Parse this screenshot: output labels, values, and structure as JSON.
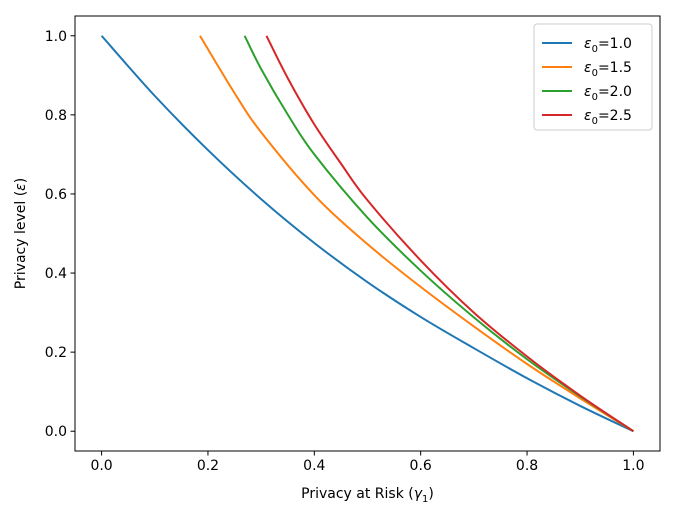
{
  "chart_data": {
    "type": "line",
    "xlabel": "Privacy at Risk (",
    "xlabel_symbol": "γ",
    "xlabel_subscript": "1",
    "xlabel_suffix": ")",
    "ylabel": "Privacy level (",
    "ylabel_symbol": "ε",
    "ylabel_suffix": ")",
    "xlim": [
      -0.05,
      1.05
    ],
    "ylim": [
      -0.05,
      1.05
    ],
    "xticks": [
      0.0,
      0.2,
      0.4,
      0.6,
      0.8,
      1.0
    ],
    "yticks": [
      0.0,
      0.2,
      0.4,
      0.6,
      0.8,
      1.0
    ],
    "xtick_labels": [
      "0.0",
      "0.2",
      "0.4",
      "0.6",
      "0.8",
      "1.0"
    ],
    "ytick_labels": [
      "0.0",
      "0.2",
      "0.4",
      "0.6",
      "0.8",
      "1.0"
    ],
    "grid": false,
    "legend_position": "top-right",
    "series": [
      {
        "name": "ε0=1.0",
        "legend_symbol": "ε",
        "legend_subscript": "0",
        "legend_value": "=1.0",
        "color": "#1f77b4",
        "x": [
          0.0,
          0.1,
          0.2,
          0.3,
          0.4,
          0.5,
          0.6,
          0.7,
          0.8,
          0.9,
          1.0
        ],
        "y": [
          1.0,
          0.848,
          0.711,
          0.587,
          0.476,
          0.377,
          0.289,
          0.21,
          0.134,
          0.064,
          0.0
        ]
      },
      {
        "name": "ε0=1.5",
        "legend_symbol": "ε",
        "legend_subscript": "0",
        "legend_value": "=1.5",
        "color": "#ff7f0e",
        "x": [
          0.185,
          0.25,
          0.3,
          0.4,
          0.5,
          0.6,
          0.7,
          0.8,
          0.9,
          1.0
        ],
        "y": [
          1.0,
          0.855,
          0.756,
          0.597,
          0.473,
          0.365,
          0.265,
          0.17,
          0.083,
          0.0
        ]
      },
      {
        "name": "ε0=2.0",
        "legend_symbol": "ε",
        "legend_subscript": "0",
        "legend_value": "=2.0",
        "color": "#2ca02c",
        "x": [
          0.269,
          0.3,
          0.35,
          0.4,
          0.5,
          0.6,
          0.7,
          0.8,
          0.9,
          1.0
        ],
        "y": [
          1.0,
          0.916,
          0.801,
          0.7,
          0.54,
          0.406,
          0.288,
          0.182,
          0.088,
          0.0
        ]
      },
      {
        "name": "ε0=2.5",
        "legend_symbol": "ε",
        "legend_subscript": "0",
        "legend_value": "=2.5",
        "color": "#d62728",
        "x": [
          0.31,
          0.35,
          0.4,
          0.45,
          0.5,
          0.6,
          0.7,
          0.8,
          0.9,
          1.0
        ],
        "y": [
          1.0,
          0.893,
          0.776,
          0.677,
          0.584,
          0.432,
          0.3,
          0.189,
          0.09,
          0.0
        ]
      }
    ]
  }
}
